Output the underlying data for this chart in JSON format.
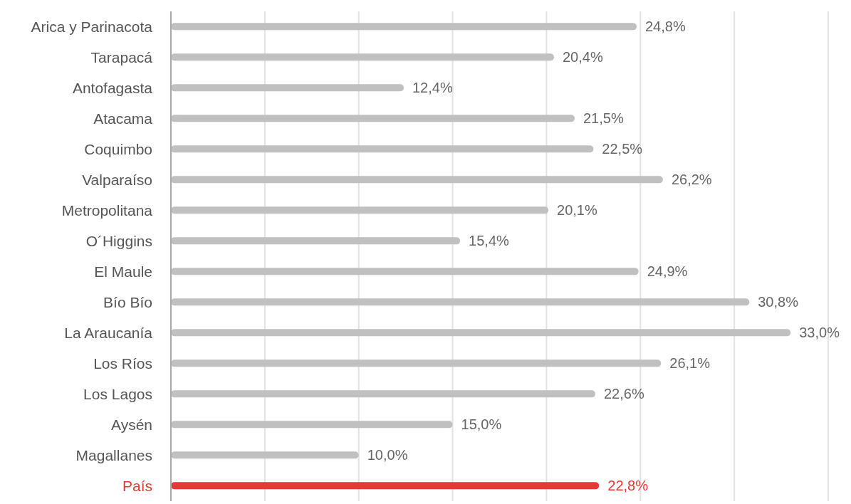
{
  "chart_data": {
    "type": "bar",
    "orientation": "horizontal",
    "categories": [
      "Arica y Parinacota",
      "Tarapacá",
      "Antofagasta",
      "Atacama",
      "Coquimbo",
      "Valparaíso",
      "Metropolitana",
      "O´Higgins",
      "El Maule",
      "Bío Bío",
      "La Araucanía",
      "Los Ríos",
      "Los Lagos",
      "Aysén",
      "Magallanes",
      "País"
    ],
    "values": [
      24.8,
      20.4,
      12.4,
      21.5,
      22.5,
      26.2,
      20.1,
      15.4,
      24.9,
      30.8,
      33.0,
      26.1,
      22.6,
      15.0,
      10.0,
      22.8
    ],
    "value_labels": [
      "24,8%",
      "20,4%",
      "12,4%",
      "21,5%",
      "22,5%",
      "26,2%",
      "20,1%",
      "15,4%",
      "24,9%",
      "30,8%",
      "33,0%",
      "26,1%",
      "22,6%",
      "15,0%",
      "10,0%",
      "22,8%"
    ],
    "colors": [
      "#c0c0c0",
      "#c0c0c0",
      "#c0c0c0",
      "#c0c0c0",
      "#c0c0c0",
      "#c0c0c0",
      "#c0c0c0",
      "#c0c0c0",
      "#c0c0c0",
      "#c0c0c0",
      "#c0c0c0",
      "#c0c0c0",
      "#c0c0c0",
      "#c0c0c0",
      "#c0c0c0",
      "#e53935"
    ],
    "xlim": [
      0,
      35
    ],
    "xticks": [
      {
        "value": 0,
        "label": null
      },
      {
        "value": 5,
        "label": null
      },
      {
        "value": 10,
        "label": null
      },
      {
        "value": 15,
        "label": null
      },
      {
        "value": 20,
        "label": null
      },
      {
        "value": 25,
        "label": null
      },
      {
        "value": 30,
        "label": null
      },
      {
        "value": 35,
        "label": null
      }
    ],
    "tick_labels": "y",
    "grid": "x"
  }
}
